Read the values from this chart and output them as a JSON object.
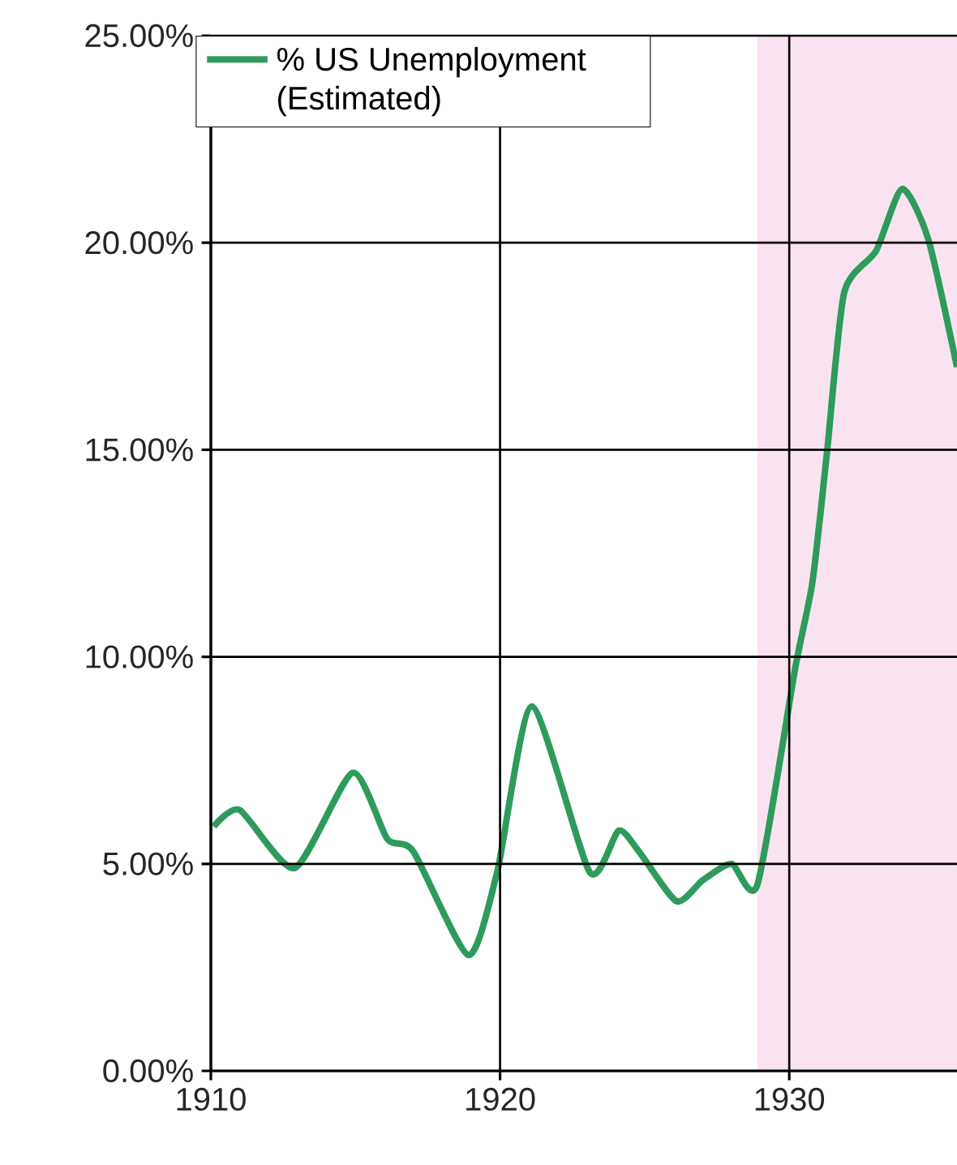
{
  "chart_data": {
    "type": "line",
    "x": [
      1910.1,
      1911.0,
      1912.9,
      1914.9,
      1916.1,
      1917.0,
      1918.9,
      1919.9,
      1921.1,
      1923.1,
      1924.1,
      1924.8,
      1926.1,
      1927.0,
      1928.0,
      1928.9,
      1930.2,
      1930.8,
      1931.3,
      1931.9,
      1933.0,
      1933.9,
      1934.8,
      1935.8
    ],
    "series": [
      {
        "name": "% US Unemployment (Estimated)",
        "color": "#2e9b5c",
        "values": [
          5.9,
          6.3,
          4.9,
          7.2,
          5.6,
          5.3,
          2.8,
          4.8,
          8.8,
          4.8,
          5.8,
          5.3,
          4.1,
          4.6,
          5.0,
          4.5,
          9.7,
          11.8,
          14.9,
          18.8,
          19.8,
          21.3,
          20.1,
          17.0
        ]
      }
    ],
    "xlim": [
      1910,
      1935.8
    ],
    "xticks": [
      1910,
      1920,
      1930
    ],
    "ylim": [
      0,
      25
    ],
    "yticks": [
      {
        "value": 0,
        "label": "0.00%"
      },
      {
        "value": 5,
        "label": "5.00%"
      },
      {
        "value": 10,
        "label": "10.00%"
      },
      {
        "value": 15,
        "label": "15.00%"
      },
      {
        "value": 20,
        "label": "20.00%"
      },
      {
        "value": 25,
        "label": "25.00%"
      }
    ],
    "bands": [
      {
        "axis": "x",
        "from": 1928.9,
        "to": 1935.8,
        "color": "#fae3f1"
      }
    ],
    "grid": true,
    "legend": "top left",
    "marker": "none",
    "line_style": "solid"
  }
}
